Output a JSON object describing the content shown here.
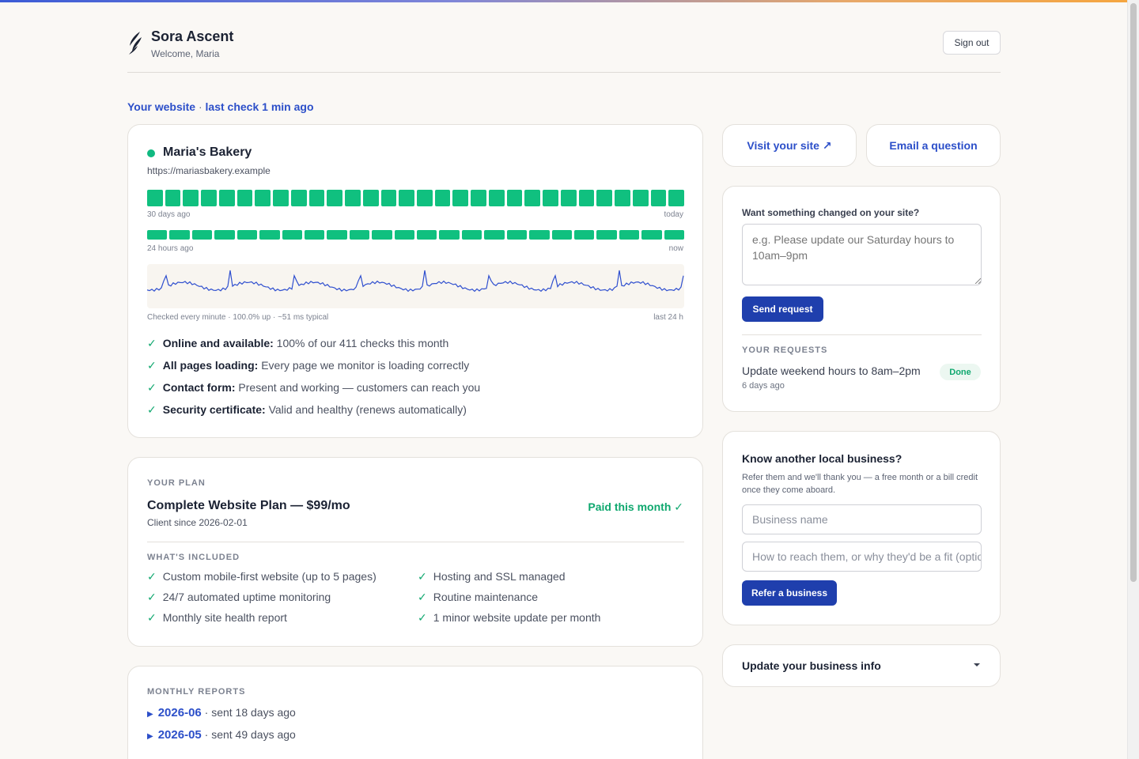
{
  "header": {
    "brand": "Sora Ascent",
    "welcome": "Welcome, Maria",
    "sign_out": "Sign out"
  },
  "status": {
    "label": "Your website",
    "separator": "·",
    "last_check": "last check 1 min ago"
  },
  "site": {
    "name": "Maria's Bakery",
    "url": "https://mariasbakery.example",
    "status_color": "#10b981",
    "days_count": 30,
    "days_start": "30 days ago",
    "days_end": "today",
    "hours_count": 24,
    "hours_start": "24 hours ago",
    "hours_end": "now",
    "spark_caption": "Checked every minute · 100.0% up · ~51 ms typical",
    "spark_range": "last 24 h",
    "checks": [
      {
        "label": "Online and available:",
        "detail": "100% of our 411 checks this month"
      },
      {
        "label": "All pages loading:",
        "detail": "Every page we monitor is loading correctly"
      },
      {
        "label": "Contact form:",
        "detail": "Present and working — customers can reach you"
      },
      {
        "label": "Security certificate:",
        "detail": "Valid and healthy (renews automatically)"
      }
    ]
  },
  "plan": {
    "section": "YOUR PLAN",
    "name": "Complete Website Plan — $99/mo",
    "client_since": "Client since 2026-02-01",
    "paid": "Paid this month ✓",
    "included_label": "WHAT'S INCLUDED",
    "included": [
      "Custom mobile-first website (up to 5 pages)",
      "Hosting and SSL managed",
      "24/7 automated uptime monitoring",
      "Routine maintenance",
      "Monthly site health report",
      "1 minor website update per month"
    ]
  },
  "reports": {
    "section": "MONTHLY REPORTS",
    "items": [
      {
        "month": "2026-06",
        "sent": "· sent 18 days ago"
      },
      {
        "month": "2026-05",
        "sent": "· sent 49 days ago"
      }
    ]
  },
  "actions": {
    "visit": "Visit your site ↗",
    "email": "Email a question"
  },
  "requests": {
    "label": "Want something changed on your site?",
    "placeholder": "e.g. Please update our Saturday hours to 10am–9pm",
    "send": "Send request",
    "section": "YOUR REQUESTS",
    "items": [
      {
        "title": "Update weekend hours to 8am–2pm",
        "when": "6 days ago",
        "status": "Done"
      }
    ]
  },
  "referral": {
    "title": "Know another local business?",
    "desc": "Refer them and we'll thank you — a free month or a bill credit once they come aboard.",
    "name_placeholder": "Business name",
    "contact_placeholder": "How to reach them, or why they'd be a fit (optional)",
    "button": "Refer a business"
  },
  "business_info": {
    "title": "Update your business info"
  },
  "colors": {
    "accent": "#2c4fc9",
    "primary_button": "#1f3fad",
    "success": "#10a86f",
    "uptime_bar": "#10c07f",
    "spark_line": "#2f4fcf"
  }
}
